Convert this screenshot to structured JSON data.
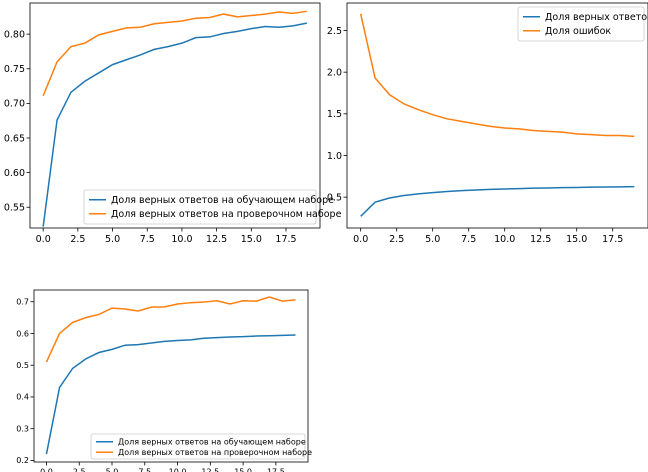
{
  "colors": {
    "blue": "#1f77b4",
    "orange": "#ff7f0e"
  },
  "chart_data": [
    {
      "type": "line",
      "x": [
        0,
        1,
        2,
        3,
        4,
        5,
        6,
        7,
        8,
        9,
        10,
        11,
        12,
        13,
        14,
        15,
        16,
        17,
        18,
        19
      ],
      "xticks": [
        "0.0",
        "2.5",
        "5.0",
        "7.5",
        "10.0",
        "12.5",
        "15.0",
        "17.5"
      ],
      "xtick_values": [
        0,
        2.5,
        5,
        7.5,
        10,
        12.5,
        15,
        17.5
      ],
      "xlim": [
        -0.95,
        19.95
      ],
      "ylim": [
        0.52,
        0.845
      ],
      "ytick_values": [
        0.55,
        0.6,
        0.65,
        0.7,
        0.75,
        0.8
      ],
      "yticks": [
        "0.55",
        "0.60",
        "0.65",
        "0.70",
        "0.75",
        "0.80"
      ],
      "legend_position": "lower-right",
      "series": [
        {
          "name": "Доля верных ответов на обучающем наборе",
          "color": "#1f77b4",
          "values": [
            0.522,
            0.676,
            0.716,
            0.732,
            0.744,
            0.756,
            0.763,
            0.77,
            0.778,
            0.782,
            0.787,
            0.795,
            0.796,
            0.801,
            0.804,
            0.808,
            0.811,
            0.81,
            0.812,
            0.816
          ]
        },
        {
          "name": "Доля верных ответов на проверочном наборе",
          "color": "#ff7f0e",
          "values": [
            0.711,
            0.76,
            0.782,
            0.787,
            0.799,
            0.804,
            0.809,
            0.81,
            0.815,
            0.817,
            0.819,
            0.823,
            0.824,
            0.829,
            0.825,
            0.827,
            0.829,
            0.832,
            0.83,
            0.833
          ]
        }
      ]
    },
    {
      "type": "line",
      "x": [
        0,
        1,
        2,
        3,
        4,
        5,
        6,
        7,
        8,
        9,
        10,
        11,
        12,
        13,
        14,
        15,
        16,
        17,
        18,
        19
      ],
      "xticks": [
        "0.0",
        "2.5",
        "5.0",
        "7.5",
        "10.0",
        "12.5",
        "15.0",
        "17.5"
      ],
      "xtick_values": [
        0,
        2.5,
        5,
        7.5,
        10,
        12.5,
        15,
        17.5
      ],
      "xlim": [
        -0.95,
        19.95
      ],
      "ylim": [
        0.13,
        2.83
      ],
      "ytick_values": [
        0.5,
        1.0,
        1.5,
        2.0,
        2.5
      ],
      "yticks": [
        "0.5",
        "1.0",
        "1.5",
        "2.0",
        "2.5"
      ],
      "legend_position": "upper-right",
      "series": [
        {
          "name": "Доля верных ответов",
          "color": "#1f77b4",
          "values": [
            0.27,
            0.44,
            0.49,
            0.52,
            0.54,
            0.555,
            0.568,
            0.578,
            0.586,
            0.594,
            0.598,
            0.602,
            0.608,
            0.61,
            0.614,
            0.616,
            0.62,
            0.622,
            0.624,
            0.627
          ]
        },
        {
          "name": "Доля ошибок",
          "color": "#ff7f0e",
          "values": [
            2.7,
            1.93,
            1.73,
            1.62,
            1.55,
            1.49,
            1.44,
            1.41,
            1.38,
            1.35,
            1.33,
            1.32,
            1.3,
            1.29,
            1.28,
            1.26,
            1.25,
            1.24,
            1.24,
            1.23
          ]
        }
      ]
    },
    {
      "type": "line",
      "x": [
        0,
        1,
        2,
        3,
        4,
        5,
        6,
        7,
        8,
        9,
        10,
        11,
        12,
        13,
        14,
        15,
        16,
        17,
        18,
        19
      ],
      "xticks": [
        "0.0",
        "2.5",
        "5.0",
        "7.5",
        "10.0",
        "12.5",
        "15.0",
        "17.5"
      ],
      "xtick_values": [
        0,
        2.5,
        5,
        7.5,
        10,
        12.5,
        15,
        17.5
      ],
      "xlim": [
        -0.95,
        19.95
      ],
      "ylim": [
        0.195,
        0.737
      ],
      "ytick_values": [
        0.2,
        0.3,
        0.4,
        0.5,
        0.6,
        0.7
      ],
      "yticks": [
        "0.2",
        "0.3",
        "0.4",
        "0.5",
        "0.6",
        "0.7"
      ],
      "legend_position": "lower-right",
      "series": [
        {
          "name": "Доля верных ответов на обучающем наборе",
          "color": "#1f77b4",
          "values": [
            0.22,
            0.43,
            0.49,
            0.52,
            0.54,
            0.55,
            0.563,
            0.565,
            0.57,
            0.575,
            0.578,
            0.58,
            0.585,
            0.587,
            0.589,
            0.59,
            0.592,
            0.593,
            0.594,
            0.595
          ]
        },
        {
          "name": "Доля верных ответов на проверочном наборе",
          "color": "#ff7f0e",
          "values": [
            0.51,
            0.6,
            0.635,
            0.65,
            0.66,
            0.68,
            0.677,
            0.671,
            0.683,
            0.684,
            0.693,
            0.697,
            0.699,
            0.703,
            0.693,
            0.703,
            0.702,
            0.715,
            0.702,
            0.706
          ]
        }
      ]
    }
  ]
}
